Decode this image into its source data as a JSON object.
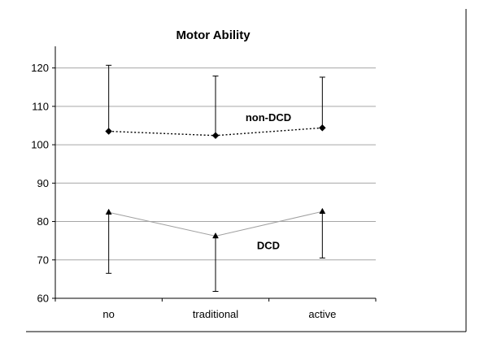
{
  "chart_data": {
    "type": "line",
    "title": "Motor Ability",
    "xlabel": "",
    "ylabel": "",
    "categories": [
      "no",
      "traditional",
      "active"
    ],
    "ylim": [
      60,
      125
    ],
    "yticks": [
      60,
      70,
      80,
      90,
      100,
      110,
      120
    ],
    "grid": true,
    "legend": "none",
    "series": [
      {
        "name": "non-DCD",
        "values": [
          103.5,
          102.4,
          104.4
        ],
        "error_high": [
          120.7,
          117.9,
          117.6
        ],
        "line_style": "dotted",
        "marker": "diamond",
        "error_direction": "up",
        "color": "#000000"
      },
      {
        "name": "DCD",
        "values": [
          82.4,
          76.2,
          82.6
        ],
        "error_low": [
          66.5,
          61.8,
          70.5
        ],
        "line_style": "solid",
        "line_color": "#a0a0a0",
        "marker": "triangle",
        "error_direction": "down",
        "color": "#000000"
      }
    ]
  }
}
